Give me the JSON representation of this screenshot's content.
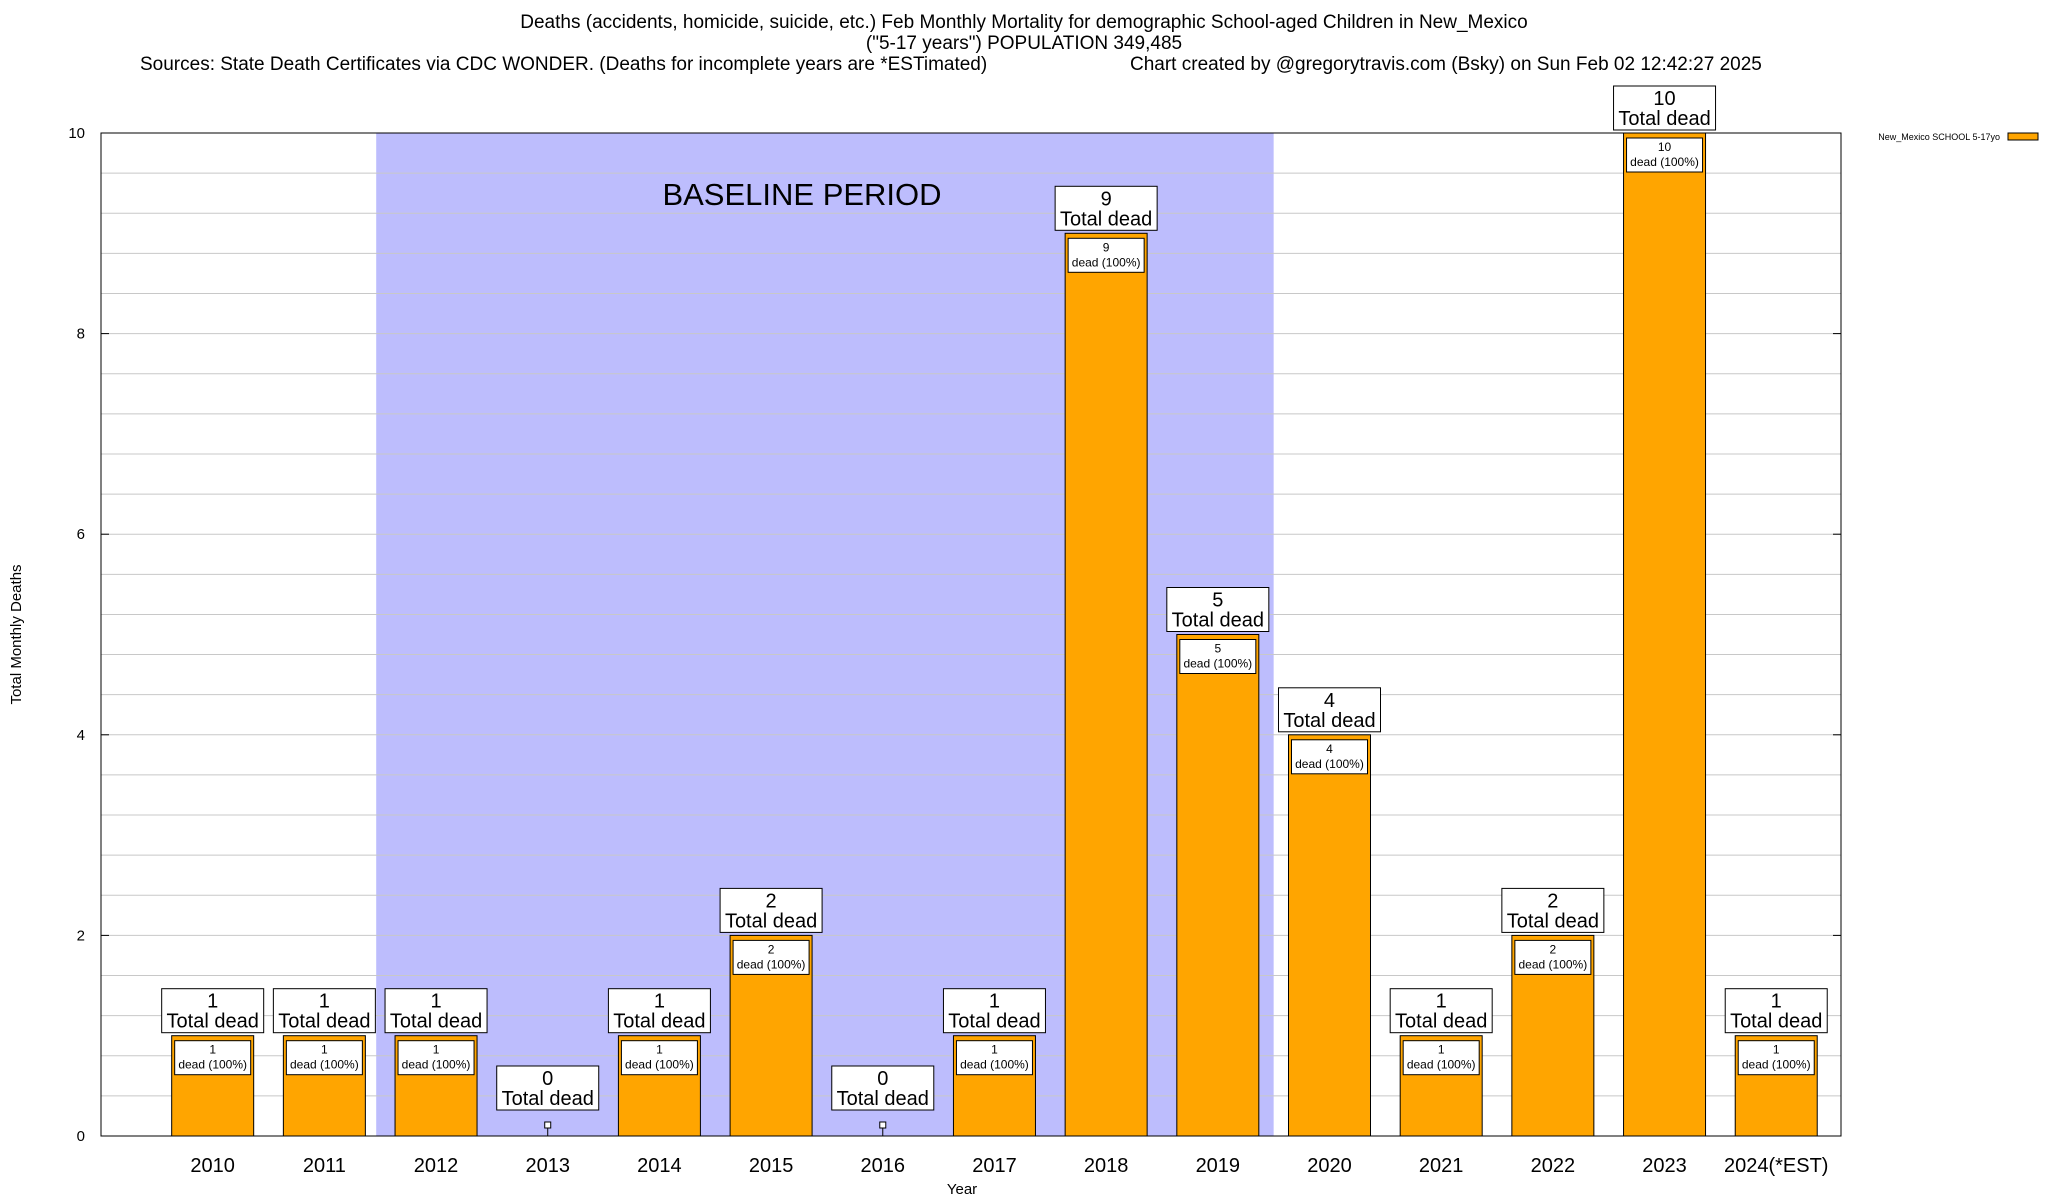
{
  "header": {
    "title_line1": "Deaths (accidents, homicide, suicide, etc.) Feb Monthly Mortality for demographic School-aged Children in New_Mexico",
    "title_line2": "(\"5-17 years\") POPULATION 349,485",
    "sources": "Sources: State Death Certificates via CDC WONDER. (Deaths for incomplete years are *ESTimated)",
    "credit": "Chart created by @gregorytravis.com (Bsky) on Sun Feb 02 12:42:27 2025"
  },
  "chart_data": {
    "type": "bar",
    "categories": [
      "2010",
      "2011",
      "2012",
      "2013",
      "2014",
      "2015",
      "2016",
      "2017",
      "2018",
      "2019",
      "2020",
      "2021",
      "2022",
      "2023",
      "2024(*EST)"
    ],
    "series": [
      {
        "name": "New_Mexico SCHOOL 5-17yo",
        "values": [
          1,
          1,
          1,
          0,
          1,
          2,
          0,
          1,
          9,
          5,
          4,
          1,
          2,
          10,
          1
        ]
      }
    ],
    "xlabel": "Year",
    "ylabel": "Total Monthly Deaths",
    "ylim": [
      0,
      10
    ],
    "yticks": [
      0,
      2,
      4,
      6,
      8,
      10
    ],
    "grid": true,
    "legend_position": "top-right",
    "total_label": "Total dead",
    "segment_label": "dead (100%)",
    "annotation": {
      "text": "BASELINE PERIOD",
      "from_category": "2012",
      "to_category": "2019"
    },
    "colors": {
      "bar": "#FFA500",
      "baseline_band": "#BDBDFD",
      "grid": "#c8c8c8"
    }
  }
}
